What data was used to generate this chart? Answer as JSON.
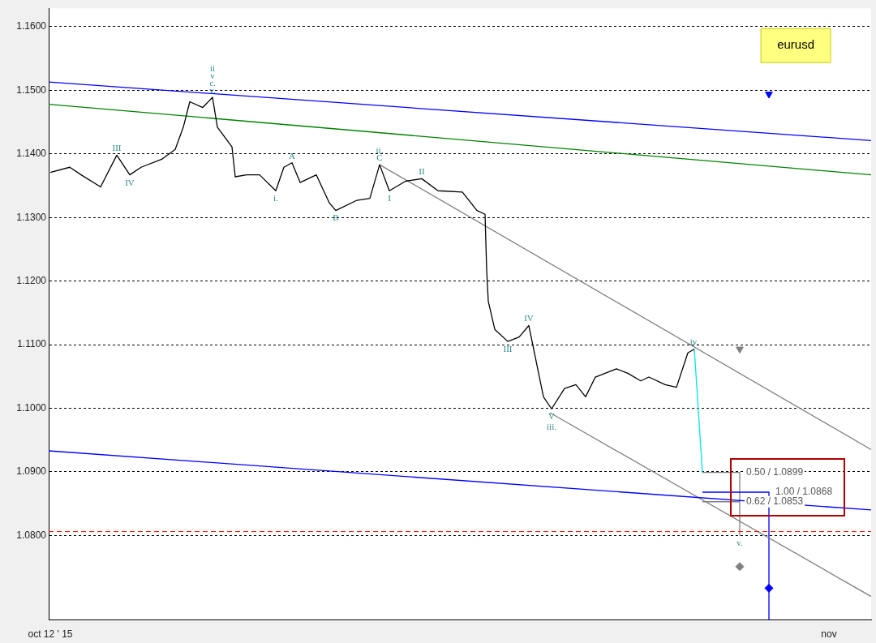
{
  "chart_data": {
    "type": "line",
    "xlim": [
      "2015-10-11T23:00",
      "2015-11-02T02:00"
    ],
    "xticks": [
      {
        "value": "2015-10-12",
        "label": "oct 12 ' 15"
      },
      {
        "value": "2015-11-01",
        "label": "nov"
      }
    ],
    "ylim": [
      1.0667,
      1.1629
    ],
    "yticks": [
      {
        "value": 1.08,
        "label": "1.0800"
      },
      {
        "value": 1.09,
        "label": "1.0900"
      },
      {
        "value": 1.1,
        "label": "1.1000"
      },
      {
        "value": 1.11,
        "label": "1.1100"
      },
      {
        "value": 1.12,
        "label": "1.1200"
      },
      {
        "value": 1.13,
        "label": "1.1300"
      },
      {
        "value": 1.14,
        "label": "1.1400"
      },
      {
        "value": 1.15,
        "label": "1.1500"
      },
      {
        "value": 1.16,
        "label": "1.1600"
      }
    ],
    "grid": "y",
    "legend": false,
    "marker": "none",
    "line_style": "solid",
    "series": [
      {
        "color": "#000000",
        "x": [
          "2015-10-12T00:00",
          "2015-10-12T12:00",
          "2015-10-12T19:00",
          "2015-10-13T07:00",
          "2015-10-13T17:00",
          "2015-10-14T01:00",
          "2015-10-14T08:00",
          "2015-10-14T21:00",
          "2015-10-15T05:00",
          "2015-10-15T10:00",
          "2015-10-15T14:00",
          "2015-10-15T22:00",
          "2015-10-16T04:00",
          "2015-10-16T07:00",
          "2015-10-16T16:00",
          "2015-10-16T18:00",
          "2015-10-17T01:00",
          "2015-10-17T09:00",
          "2015-10-17T19:00",
          "2015-10-18T00:00",
          "2015-10-18T05:00",
          "2015-10-18T10:00",
          "2015-10-18T20:00",
          "2015-10-19T04:00",
          "2015-10-19T08:00",
          "2015-10-19T21:00",
          "2015-10-20T05:00",
          "2015-10-20T11:00",
          "2015-10-20T17:00",
          "2015-10-21T03:00",
          "2015-10-21T13:00",
          "2015-10-21T23:00",
          "2015-10-22T14:00",
          "2015-10-22T23:00",
          "2015-10-23T04:00",
          "2015-10-23T05:00",
          "2015-10-23T06:00",
          "2015-10-23T10:00",
          "2015-10-23T18:00",
          "2015-10-24T01:00",
          "2015-10-24T07:00",
          "2015-10-24T11:00",
          "2015-10-24T16:00",
          "2015-10-24T21:00",
          "2015-10-25T05:00",
          "2015-10-25T12:00",
          "2015-10-25T18:00",
          "2015-10-26T00:00",
          "2015-10-26T13:00",
          "2015-10-26T20:00",
          "2015-10-27T04:00",
          "2015-10-27T09:00",
          "2015-10-27T19:00",
          "2015-10-28T02:00",
          "2015-10-28T09:00",
          "2015-10-28T13:00"
        ],
        "values": [
          1.1371,
          1.1379,
          1.1367,
          1.1348,
          1.1398,
          1.1367,
          1.1379,
          1.1392,
          1.1407,
          1.1442,
          1.1482,
          1.1473,
          1.1489,
          1.1442,
          1.1411,
          1.1364,
          1.1367,
          1.1367,
          1.1342,
          1.1379,
          1.1386,
          1.1355,
          1.1367,
          1.1323,
          1.1311,
          1.1327,
          1.133,
          1.1383,
          1.1342,
          1.1357,
          1.1361,
          1.1342,
          1.134,
          1.1311,
          1.1305,
          1.1217,
          1.1168,
          1.1124,
          1.1105,
          1.1112,
          1.113,
          1.108,
          1.1018,
          1.0999,
          1.1031,
          1.1037,
          1.1018,
          1.1049,
          1.1062,
          1.1055,
          1.1043,
          1.1049,
          1.1037,
          1.1033,
          1.1087,
          1.1093
        ]
      },
      {
        "color": "#00e5ee",
        "x": [
          "2015-10-28T13:00",
          "2015-10-28T18:00"
        ],
        "values": [
          1.1093,
          1.0899
        ]
      },
      {
        "color": "#0000ff",
        "x": [
          "2015-10-11T23:00",
          "2015-11-02T02:00"
        ],
        "values": [
          1.1513,
          1.1421
        ]
      },
      {
        "color": "#008000",
        "x": [
          "2015-10-11T23:00",
          "2015-11-02T02:00"
        ],
        "values": [
          1.1478,
          1.1367
        ]
      },
      {
        "color": "#0000ff",
        "x": [
          "2015-10-11T23:00",
          "2015-11-02T02:00"
        ],
        "values": [
          1.0933,
          1.084
        ]
      },
      {
        "color": "#808080",
        "x": [
          "2015-10-20T11:00",
          "2015-11-02T02:00"
        ],
        "values": [
          1.1383,
          1.0935
        ]
      },
      {
        "color": "#808080",
        "x": [
          "2015-10-24T20:00",
          "2015-11-02T02:00"
        ],
        "values": [
          1.0993,
          1.0704
        ]
      },
      {
        "color": "#808080",
        "x": [
          "2015-10-28T18:00",
          "2015-10-29T17:00"
        ],
        "values": [
          1.0899,
          1.0899
        ]
      },
      {
        "color": "#808080",
        "x": [
          "2015-10-28T18:00",
          "2015-10-29T17:00"
        ],
        "values": [
          1.0853,
          1.0853
        ]
      },
      {
        "color": "#0000ff",
        "x": [
          "2015-10-28T18:00",
          "2015-10-30T11:00"
        ],
        "values": [
          1.0868,
          1.0868
        ]
      },
      {
        "color": "#808080",
        "x": [
          "2015-10-29T17:00",
          "2015-10-29T17:00"
        ],
        "values": [
          1.0899,
          1.08
        ]
      },
      {
        "color": "#0000ff",
        "x": [
          "2015-10-30T11:00",
          "2015-10-30T11:00"
        ],
        "values": [
          1.0868,
          1.0667
        ]
      },
      {
        "type": "scatter",
        "marker": "triangle",
        "color": "#0000ff",
        "x": [
          "2015-10-30T11:00"
        ],
        "values": [
          1.1494
        ]
      },
      {
        "type": "scatter",
        "marker": "triangle",
        "color": "#808080",
        "x": [
          "2015-10-29T17:00"
        ],
        "values": [
          1.1093
        ]
      },
      {
        "type": "scatter",
        "marker": "diamond",
        "color": "#808080",
        "x": [
          "2015-10-29T17:00"
        ],
        "values": [
          1.0751
        ]
      },
      {
        "type": "scatter",
        "marker": "diamond",
        "color": "#0000ff",
        "x": [
          "2015-10-30T11:00"
        ],
        "values": [
          1.0717
        ]
      }
    ],
    "ref_lines": [
      {
        "axis": "y",
        "value": 1.0806,
        "color": "#ff0000",
        "line_style": "dashed"
      }
    ],
    "annotations": [
      "eurusd",
      {
        "text": "III",
        "x": "2015-10-13T17:00",
        "y": 1.1398
      },
      {
        "text": "IV",
        "x": "2015-10-14T01:00",
        "y": 1.1367
      },
      {
        "text": "ii",
        "x": "2015-10-16T04:00",
        "y": 1.1489
      },
      {
        "text": "v",
        "x": "2015-10-16T04:00",
        "y": 1.1489
      },
      {
        "text": "c.",
        "x": "2015-10-16T04:00",
        "y": 1.1489
      },
      {
        "text": "v.",
        "x": "2015-10-16T04:00",
        "y": 1.1489
      },
      {
        "text": "i.",
        "x": "2015-10-17T19:00",
        "y": 1.1342
      },
      {
        "text": "A",
        "x": "2015-10-18T05:00",
        "y": 1.1386
      },
      {
        "text": "B",
        "x": "2015-10-19T08:00",
        "y": 1.1311
      },
      {
        "text": "ii.",
        "x": "2015-10-20T11:00",
        "y": 1.1383
      },
      {
        "text": "C",
        "x": "2015-10-20T11:00",
        "y": 1.1383
      },
      {
        "text": "I",
        "x": "2015-10-20T17:00",
        "y": 1.1342
      },
      {
        "text": "II",
        "x": "2015-10-21T13:00",
        "y": 1.1361
      },
      {
        "text": "IV",
        "x": "2015-10-24T07:00",
        "y": 1.113
      },
      {
        "text": "III",
        "x": "2015-10-23T18:00",
        "y": 1.1105
      },
      {
        "text": "V",
        "x": "2015-10-24T21:00",
        "y": 1.0999
      },
      {
        "text": "iii.",
        "x": "2015-10-24T21:00",
        "y": 1.0999
      },
      {
        "text": "iv.",
        "x": "2015-10-28T13:00",
        "y": 1.1093
      },
      {
        "text": "v.",
        "x": "2015-10-29T17:00",
        "y": 1.08
      },
      {
        "text": "0.50 / 1.0899",
        "x": "2015-10-29T17:00",
        "y": 1.0899
      },
      {
        "text": "1.00 / 1.0868",
        "x": "2015-10-30T11:00",
        "y": 1.0868
      },
      {
        "text": "0.62 / 1.0853",
        "x": "2015-10-29T17:00",
        "y": 1.0853
      }
    ]
  }
}
